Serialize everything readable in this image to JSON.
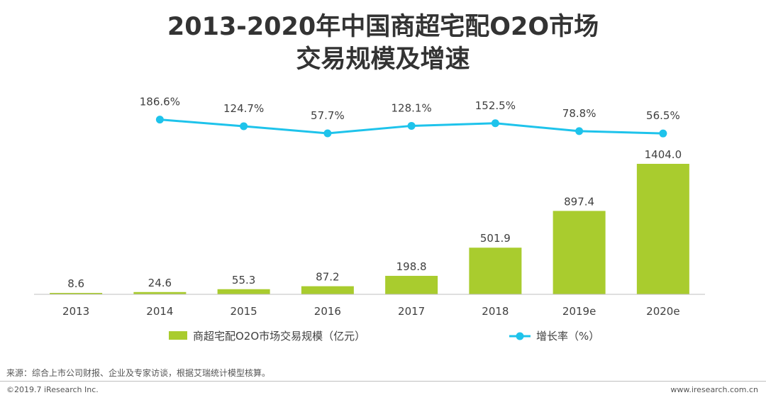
{
  "title_line1": "2013-2020年中国商超宅配O2O市场",
  "title_line2": "交易规模及增速",
  "chart_data": {
    "type": "bar",
    "categories": [
      "2013",
      "2014",
      "2015",
      "2016",
      "2017",
      "2018",
      "2019e",
      "2020e"
    ],
    "series": [
      {
        "name": "商超宅配O2O市场交易规模（亿元）",
        "type": "bar",
        "color": "#a9cc2e",
        "values": [
          8.6,
          24.6,
          55.3,
          87.2,
          198.8,
          501.9,
          897.4,
          1404.0
        ],
        "labels": [
          "8.6",
          "24.6",
          "55.3",
          "87.2",
          "198.8",
          "501.9",
          "897.4",
          "1404.0"
        ]
      },
      {
        "name": "增长率（%）",
        "type": "line",
        "color": "#1ec3eb",
        "values": [
          null,
          186.6,
          124.7,
          57.7,
          128.1,
          152.5,
          78.8,
          56.5
        ],
        "labels": [
          "",
          "186.6%",
          "124.7%",
          "57.7%",
          "128.1%",
          "152.5%",
          "78.8%",
          "56.5%"
        ]
      }
    ],
    "ylim": [
      0,
      1404.0
    ]
  },
  "source": "来源：综合上市公司财报、企业及专家访谈，根据艾瑞统计模型核算。",
  "copyright": "©2019.7 iResearch Inc.",
  "website": "www.iresearch.com.cn"
}
